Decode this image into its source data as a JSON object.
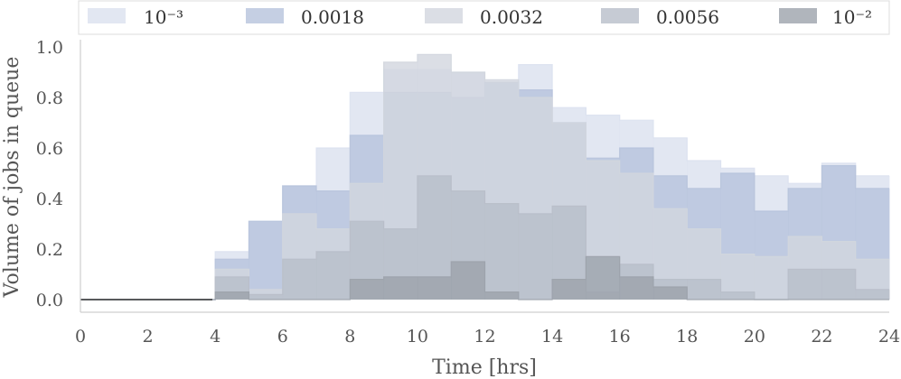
{
  "chart_data": {
    "type": "area",
    "step": true,
    "title": "",
    "xlabel": "Time [hrs]",
    "ylabel": "Volume of jobs in queue",
    "xlim": [
      0,
      24
    ],
    "ylim": [
      0,
      1.0
    ],
    "xticks": [
      "0",
      "2",
      "4",
      "6",
      "8",
      "10",
      "12",
      "14",
      "16",
      "18",
      "20",
      "22",
      "24"
    ],
    "yticks": [
      "0.0",
      "0.2",
      "0.4",
      "0.6",
      "0.8",
      "1.0"
    ],
    "grid": false,
    "legend_position": "top",
    "x": [
      0,
      1,
      2,
      3,
      4,
      5,
      6,
      7,
      8,
      9,
      10,
      11,
      12,
      13,
      14,
      15,
      16,
      17,
      18,
      19,
      20,
      21,
      22,
      23
    ],
    "series": [
      {
        "name": "10⁻³",
        "color": "#dbe1ef",
        "values": [
          0,
          0,
          0,
          0,
          0.19,
          0.31,
          0.45,
          0.6,
          0.82,
          0.91,
          0.91,
          0.9,
          0.86,
          0.93,
          0.76,
          0.73,
          0.71,
          0.64,
          0.55,
          0.52,
          0.49,
          0.46,
          0.54,
          0.49
        ]
      },
      {
        "name": "0.0018",
        "color": "#b7c3dc",
        "values": [
          0,
          0,
          0,
          0,
          0.16,
          0.31,
          0.45,
          0.43,
          0.65,
          0.82,
          0.82,
          0.8,
          0.86,
          0.83,
          0.7,
          0.56,
          0.6,
          0.49,
          0.44,
          0.5,
          0.35,
          0.44,
          0.53,
          0.44
        ]
      },
      {
        "name": "0.0032",
        "color": "#d2d6de",
        "values": [
          0,
          0,
          0,
          0,
          0.12,
          0.04,
          0.34,
          0.28,
          0.46,
          0.94,
          0.97,
          0.9,
          0.87,
          0.8,
          0.7,
          0.55,
          0.5,
          0.36,
          0.28,
          0.18,
          0.17,
          0.25,
          0.23,
          0.16
        ]
      },
      {
        "name": "0.0056",
        "color": "#b8bec9",
        "values": [
          0,
          0,
          0,
          0,
          0.09,
          0.02,
          0.16,
          0.19,
          0.31,
          0.28,
          0.49,
          0.43,
          0.38,
          0.34,
          0.37,
          0.03,
          0.14,
          0.08,
          0.08,
          0.03,
          0,
          0.12,
          0.12,
          0.04
        ]
      },
      {
        "name": "10⁻²",
        "color": "#9ca2ab",
        "values": [
          0,
          0,
          0,
          0,
          0.03,
          0,
          0,
          0,
          0.08,
          0.09,
          0.09,
          0.15,
          0.03,
          0,
          0.08,
          0.17,
          0.09,
          0.05,
          0,
          0,
          0,
          0,
          0,
          0
        ]
      }
    ]
  }
}
